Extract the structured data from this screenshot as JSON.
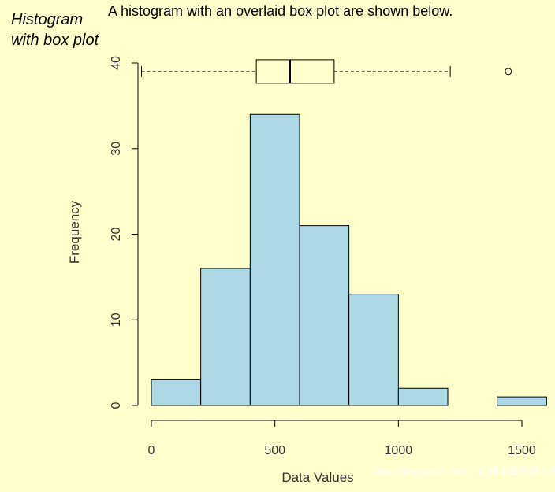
{
  "side_title": "Histogram with box plot",
  "caption": "A histogram with an overlaid box plot are shown below.",
  "watermark": "https://blog.csdn.net/...  @稀土掘金技术社区",
  "colors": {
    "background": "#ffffcc",
    "bar_fill": "#add8e6",
    "stroke": "#000000"
  },
  "chart_data": {
    "type": "bar",
    "title": "",
    "xlabel": "Data Values",
    "ylabel": "Frequency",
    "bins": [
      [
        0,
        200
      ],
      [
        200,
        400
      ],
      [
        400,
        600
      ],
      [
        600,
        800
      ],
      [
        800,
        1000
      ],
      [
        1000,
        1200
      ],
      [
        1200,
        1400
      ],
      [
        1400,
        1600
      ]
    ],
    "values": [
      3,
      16,
      34,
      21,
      13,
      2,
      0,
      1
    ],
    "xlim": [
      0,
      1600
    ],
    "ylim": [
      0,
      40
    ],
    "xticks": [
      0,
      500,
      1000,
      1500
    ],
    "yticks": [
      0,
      10,
      20,
      30,
      40
    ],
    "boxplot": {
      "whisker_low": -40,
      "q1": 425,
      "median": 560,
      "q3": 740,
      "whisker_high": 1210,
      "outliers": [
        1445
      ],
      "y_position": 39
    }
  }
}
